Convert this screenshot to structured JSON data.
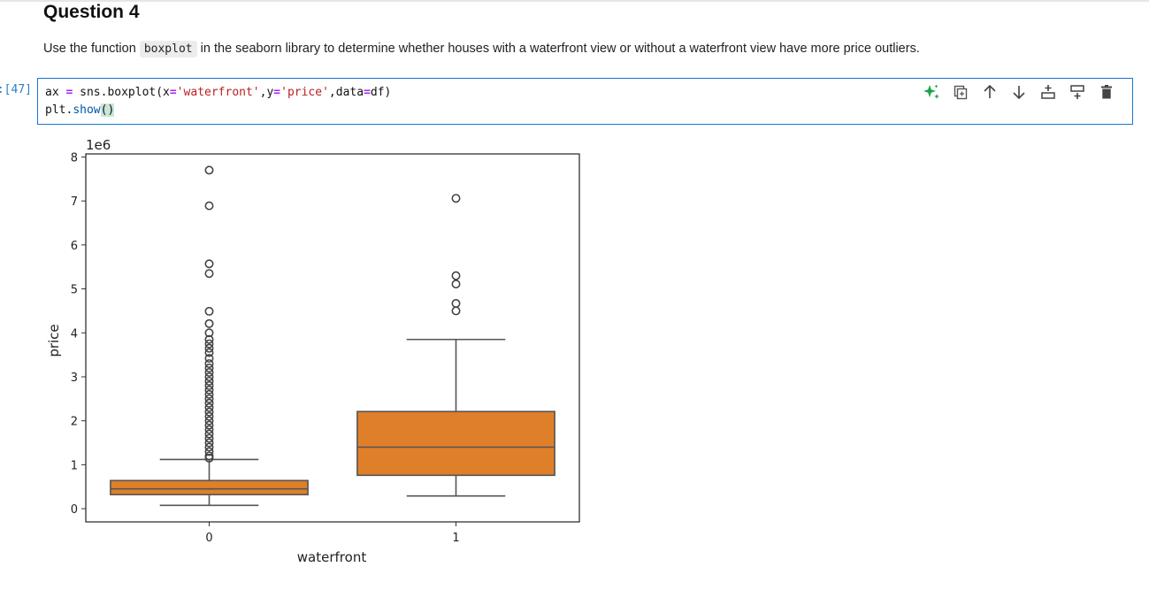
{
  "heading": "Question 4",
  "instruction": {
    "before": "Use the function",
    "code": "boxplot",
    "after": "in the seaborn library to determine whether houses with a waterfront view or without a waterfront view have more price outliers."
  },
  "cell": {
    "prompt": "[47]:",
    "line1": {
      "a": "ax",
      "eq": "=",
      "b": "sns.boxplot(x",
      "eq2": "=",
      "s1": "'waterfront'",
      "c": ",y",
      "eq3": "=",
      "s2": "'price'",
      "d": ",data",
      "eq4": "=",
      "e": "df)"
    },
    "line2": {
      "a": "plt.",
      "fn": "show",
      "p": "()"
    },
    "toolbar": [
      {
        "icon": "sparkle-icon",
        "name": "ai-assist-button",
        "color": "#1aa34a"
      },
      {
        "icon": "duplicate-icon",
        "name": "duplicate-cell-button"
      },
      {
        "icon": "arrow-up-icon",
        "name": "move-up-button"
      },
      {
        "icon": "arrow-down-icon",
        "name": "move-down-button"
      },
      {
        "icon": "insert-above-icon",
        "name": "insert-above-button"
      },
      {
        "icon": "insert-below-icon",
        "name": "insert-below-button"
      },
      {
        "icon": "trash-icon",
        "name": "delete-cell-button"
      }
    ]
  },
  "chart_data": {
    "type": "box",
    "xlabel": "waterfront",
    "ylabel": "price",
    "offset_label": "1e6",
    "ylim": [
      -0.3,
      8.07
    ],
    "yticks": [
      0,
      1,
      2,
      3,
      4,
      5,
      6,
      7,
      8
    ],
    "categories": [
      "0",
      "1"
    ],
    "box_color": "#e07f2a",
    "series": [
      {
        "category": "0",
        "whisker_low": 0.075,
        "q1": 0.32,
        "median": 0.45,
        "q3": 0.64,
        "whisker_high": 1.12,
        "outliers": [
          7.7,
          6.89,
          5.57,
          5.35,
          4.49,
          4.21,
          4.0,
          3.85,
          3.75,
          3.65,
          3.55,
          3.42,
          3.3,
          3.2,
          3.1,
          3.0,
          2.9,
          2.8,
          2.7,
          2.6,
          2.5,
          2.4,
          2.3,
          2.2,
          2.1,
          2.0,
          1.9,
          1.8,
          1.7,
          1.6,
          1.5,
          1.4,
          1.3,
          1.2,
          1.15
        ]
      },
      {
        "category": "1",
        "whisker_low": 0.29,
        "q1": 0.76,
        "median": 1.4,
        "q3": 2.21,
        "whisker_high": 3.85,
        "outliers": [
          7.06,
          5.3,
          5.11,
          4.67,
          4.5
        ]
      }
    ]
  }
}
